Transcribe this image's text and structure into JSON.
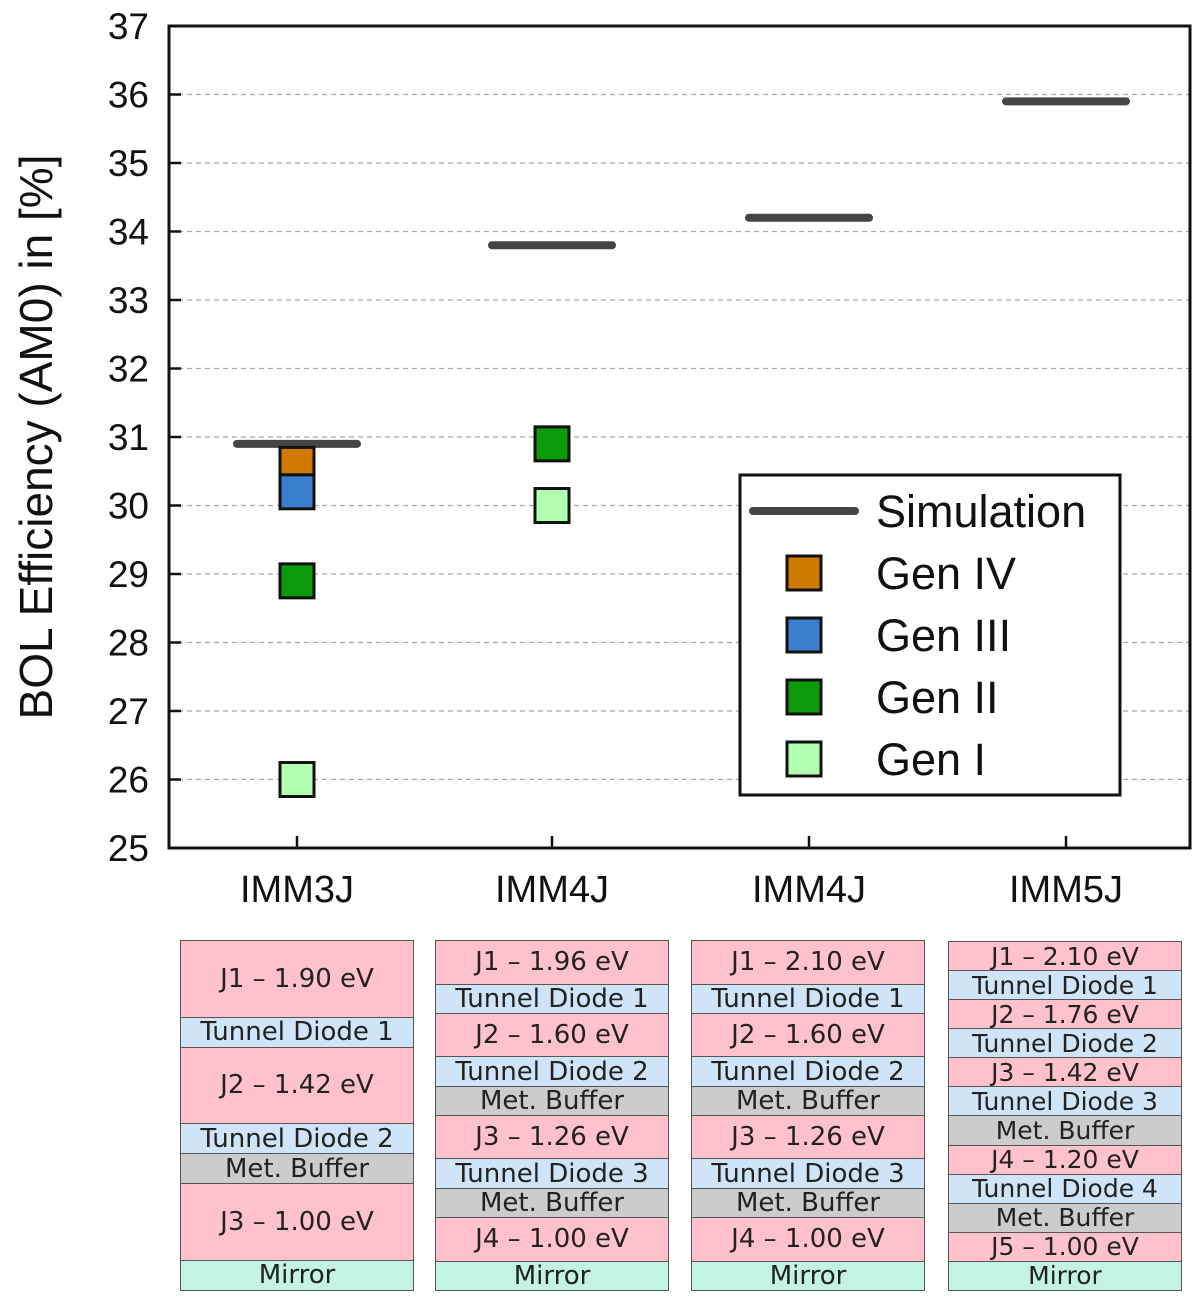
{
  "chart_data": {
    "type": "scatter",
    "ylabel": "BOL Efficiency (AM0) in [%]",
    "ylim": [
      25,
      37
    ],
    "yticks": [
      25,
      26,
      27,
      28,
      29,
      30,
      31,
      32,
      33,
      34,
      35,
      36,
      37
    ],
    "grid": "horizontal dashed",
    "categories": [
      "IMM3J",
      "IMM4J",
      "IMM4J",
      "IMM5J"
    ],
    "series": [
      {
        "name": "Simulation",
        "marker": "line",
        "color": "#454545",
        "values": [
          30.9,
          33.8,
          34.2,
          35.9
        ]
      },
      {
        "name": "Gen IV",
        "marker": "square",
        "color": "#d07a00",
        "values": [
          30.6,
          null,
          null,
          null
        ]
      },
      {
        "name": "Gen III",
        "marker": "square",
        "color": "#3a7fce",
        "values": [
          30.2,
          null,
          null,
          null
        ]
      },
      {
        "name": "Gen II",
        "marker": "square",
        "color": "#0a9a0a",
        "values": [
          28.9,
          30.9,
          null,
          null
        ]
      },
      {
        "name": "Gen I",
        "marker": "square",
        "color": "#b2ffb2",
        "values": [
          26.0,
          30.0,
          null,
          null
        ]
      }
    ],
    "legend_position": "bottom-right"
  },
  "layer_stacks": [
    {
      "category": "IMM3J",
      "layers": [
        {
          "label": "J1 – 1.90 eV",
          "type": "junction"
        },
        {
          "label": "Tunnel Diode 1",
          "type": "tunnel"
        },
        {
          "label": "J2 – 1.42 eV",
          "type": "junction"
        },
        {
          "label": "Tunnel Diode 2",
          "type": "tunnel"
        },
        {
          "label": "Met. Buffer",
          "type": "buffer"
        },
        {
          "label": "J3 – 1.00 eV",
          "type": "junction"
        },
        {
          "label": "Mirror",
          "type": "mirror"
        }
      ]
    },
    {
      "category": "IMM4J",
      "layers": [
        {
          "label": "J1 – 1.96 eV",
          "type": "junction"
        },
        {
          "label": "Tunnel Diode 1",
          "type": "tunnel"
        },
        {
          "label": "J2 – 1.60 eV",
          "type": "junction"
        },
        {
          "label": "Tunnel Diode 2",
          "type": "tunnel"
        },
        {
          "label": "Met. Buffer",
          "type": "buffer"
        },
        {
          "label": "J3 – 1.26 eV",
          "type": "junction"
        },
        {
          "label": "Tunnel Diode 3",
          "type": "tunnel"
        },
        {
          "label": "Met. Buffer",
          "type": "buffer"
        },
        {
          "label": "J4 – 1.00 eV",
          "type": "junction"
        },
        {
          "label": "Mirror",
          "type": "mirror"
        }
      ]
    },
    {
      "category": "IMM4J",
      "layers": [
        {
          "label": "J1 – 2.10 eV",
          "type": "junction"
        },
        {
          "label": "Tunnel Diode 1",
          "type": "tunnel"
        },
        {
          "label": "J2 – 1.60 eV",
          "type": "junction"
        },
        {
          "label": "Tunnel Diode 2",
          "type": "tunnel"
        },
        {
          "label": "Met. Buffer",
          "type": "buffer"
        },
        {
          "label": "J3 – 1.26 eV",
          "type": "junction"
        },
        {
          "label": "Tunnel Diode 3",
          "type": "tunnel"
        },
        {
          "label": "Met. Buffer",
          "type": "buffer"
        },
        {
          "label": "J4 – 1.00 eV",
          "type": "junction"
        },
        {
          "label": "Mirror",
          "type": "mirror"
        }
      ]
    },
    {
      "category": "IMM5J",
      "layers": [
        {
          "label": "J1 – 2.10 eV",
          "type": "junction"
        },
        {
          "label": "Tunnel Diode 1",
          "type": "tunnel"
        },
        {
          "label": "J2 – 1.76 eV",
          "type": "junction"
        },
        {
          "label": "Tunnel Diode 2",
          "type": "tunnel"
        },
        {
          "label": "J3 – 1.42 eV",
          "type": "junction"
        },
        {
          "label": "Tunnel Diode 3",
          "type": "tunnel"
        },
        {
          "label": "Met. Buffer",
          "type": "buffer"
        },
        {
          "label": "J4 – 1.20 eV",
          "type": "junction"
        },
        {
          "label": "Tunnel Diode 4",
          "type": "tunnel"
        },
        {
          "label": "Met. Buffer",
          "type": "buffer"
        },
        {
          "label": "J5 – 1.00 eV",
          "type": "junction"
        },
        {
          "label": "Mirror",
          "type": "mirror"
        }
      ]
    }
  ]
}
